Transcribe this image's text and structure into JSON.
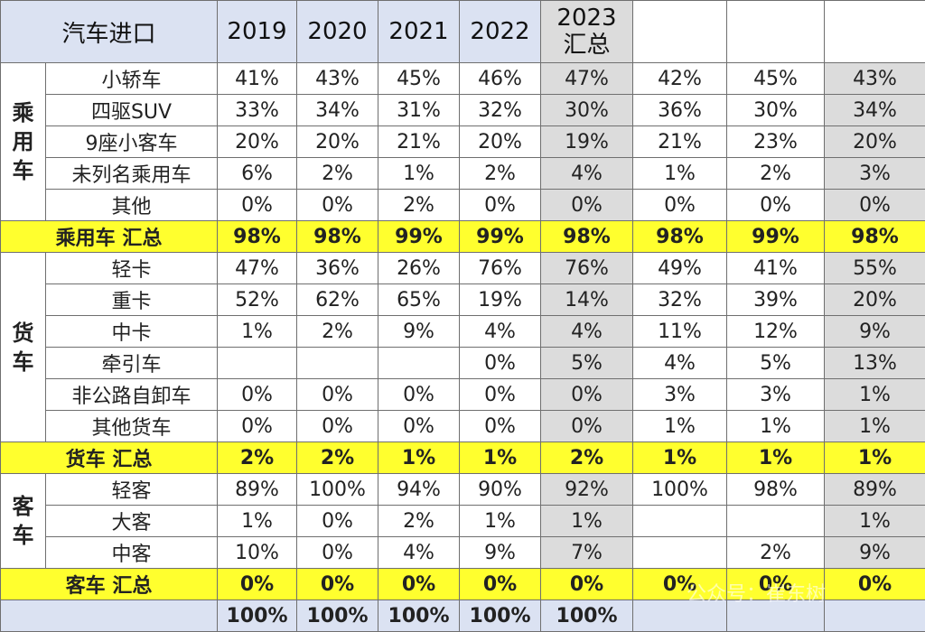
{
  "header": {
    "title": "汽车进口",
    "years": [
      "2019",
      "2020",
      "2021",
      "2022"
    ],
    "year_2023_line1": "2023",
    "year_2023_line2": "汇总"
  },
  "groups": {
    "passenger": "乘用车",
    "truck": "货车",
    "bus": "客车"
  },
  "passenger_rows": [
    {
      "label": "小轿车",
      "values": [
        "41%",
        "43%",
        "45%",
        "46%",
        "47%",
        "42%",
        "45%",
        "43%"
      ]
    },
    {
      "label": "四驱SUV",
      "values": [
        "33%",
        "34%",
        "31%",
        "32%",
        "30%",
        "36%",
        "30%",
        "34%"
      ]
    },
    {
      "label": "9座小客车",
      "values": [
        "20%",
        "20%",
        "21%",
        "20%",
        "19%",
        "21%",
        "23%",
        "20%"
      ]
    },
    {
      "label": "未列名乘用车",
      "values": [
        "6%",
        "2%",
        "1%",
        "2%",
        "4%",
        "1%",
        "2%",
        "3%"
      ]
    },
    {
      "label": "其他",
      "values": [
        "0%",
        "0%",
        "2%",
        "0%",
        "0%",
        "0%",
        "0%",
        "0%"
      ]
    }
  ],
  "passenger_summary": {
    "label": "乘用车 汇总",
    "values": [
      "98%",
      "98%",
      "99%",
      "99%",
      "98%",
      "98%",
      "99%",
      "98%"
    ]
  },
  "truck_rows": [
    {
      "label": "轻卡",
      "values": [
        "47%",
        "36%",
        "26%",
        "76%",
        "76%",
        "49%",
        "41%",
        "55%"
      ]
    },
    {
      "label": "重卡",
      "values": [
        "52%",
        "62%",
        "65%",
        "19%",
        "14%",
        "32%",
        "39%",
        "20%"
      ]
    },
    {
      "label": "中卡",
      "values": [
        "1%",
        "2%",
        "9%",
        "4%",
        "4%",
        "11%",
        "12%",
        "9%"
      ]
    },
    {
      "label": "牵引车",
      "values": [
        "",
        "",
        "",
        "0%",
        "5%",
        "4%",
        "5%",
        "13%"
      ]
    },
    {
      "label": "非公路自卸车",
      "values": [
        "0%",
        "0%",
        "0%",
        "0%",
        "0%",
        "3%",
        "3%",
        "1%"
      ]
    },
    {
      "label": "其他货车",
      "values": [
        "0%",
        "0%",
        "0%",
        "0%",
        "0%",
        "1%",
        "1%",
        "1%"
      ]
    }
  ],
  "truck_summary": {
    "label": "货车 汇总",
    "values": [
      "2%",
      "2%",
      "1%",
      "1%",
      "2%",
      "1%",
      "1%",
      "1%"
    ]
  },
  "bus_rows": [
    {
      "label": "轻客",
      "values": [
        "89%",
        "100%",
        "94%",
        "90%",
        "92%",
        "100%",
        "98%",
        "89%"
      ]
    },
    {
      "label": "大客",
      "values": [
        "1%",
        "0%",
        "2%",
        "1%",
        "1%",
        "",
        "",
        "1%"
      ]
    },
    {
      "label": "中客",
      "values": [
        "10%",
        "0%",
        "4%",
        "9%",
        "7%",
        "",
        "2%",
        "9%"
      ]
    }
  ],
  "bus_summary": {
    "label": "客车 汇总",
    "values": [
      "0%",
      "0%",
      "0%",
      "0%",
      "0%",
      "0%",
      "0%",
      "0%"
    ]
  },
  "total_row": {
    "label": "",
    "values": [
      "100%",
      "100%",
      "100%",
      "100%",
      "100%",
      "",
      "",
      ""
    ]
  },
  "watermark": "公众号：崔东树"
}
